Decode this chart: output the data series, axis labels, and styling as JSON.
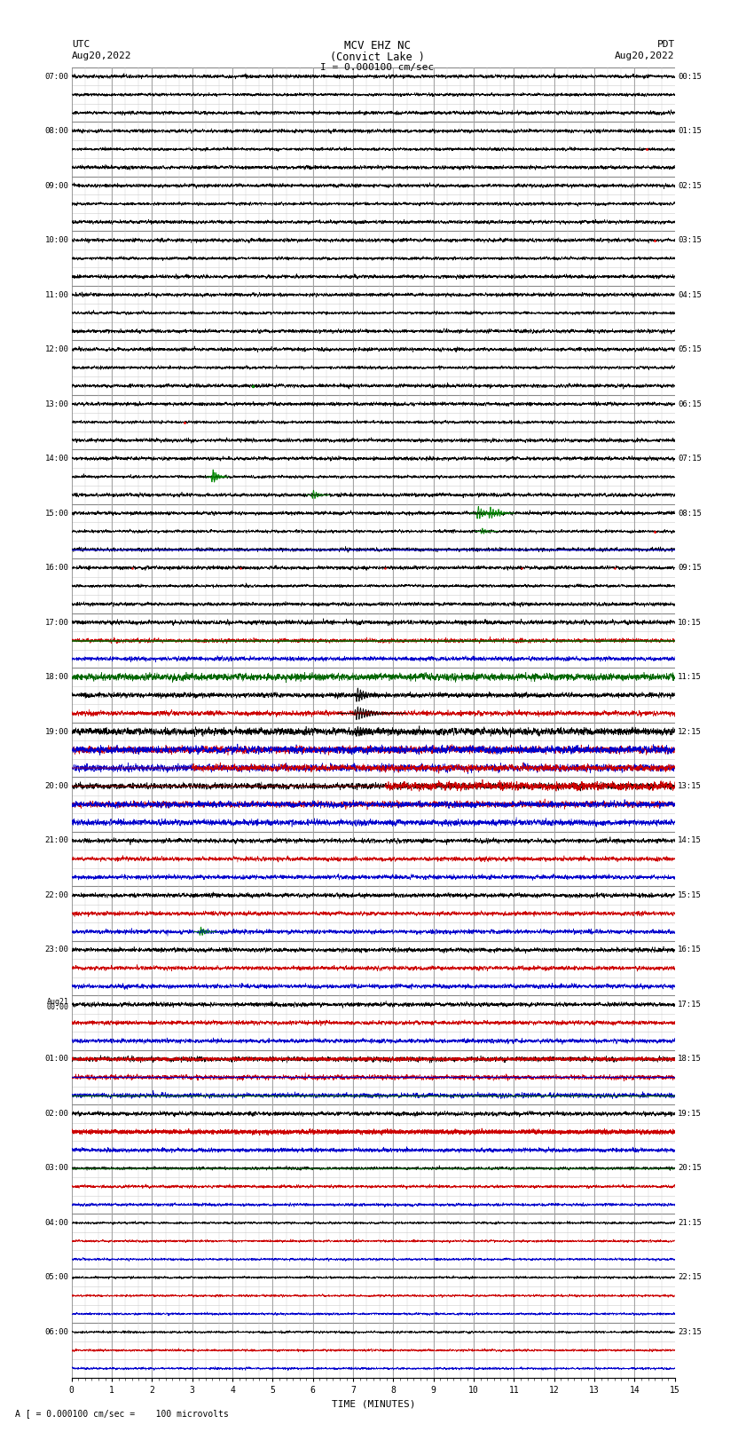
{
  "title_line1": "MCV EHZ NC",
  "title_line2": "(Convict Lake )",
  "title_line3": "I = 0.000100 cm/sec",
  "left_label_line1": "UTC",
  "left_label_line2": "Aug20,2022",
  "right_label_line1": "PDT",
  "right_label_line2": "Aug20,2022",
  "bottom_label": "TIME (MINUTES)",
  "footnote": "A [ = 0.000100 cm/sec =    100 microvolts",
  "xmin": 0,
  "xmax": 15,
  "num_rows": 72,
  "background_color": "#ffffff",
  "grid_major_color": "#888888",
  "grid_minor_color": "#cccccc"
}
